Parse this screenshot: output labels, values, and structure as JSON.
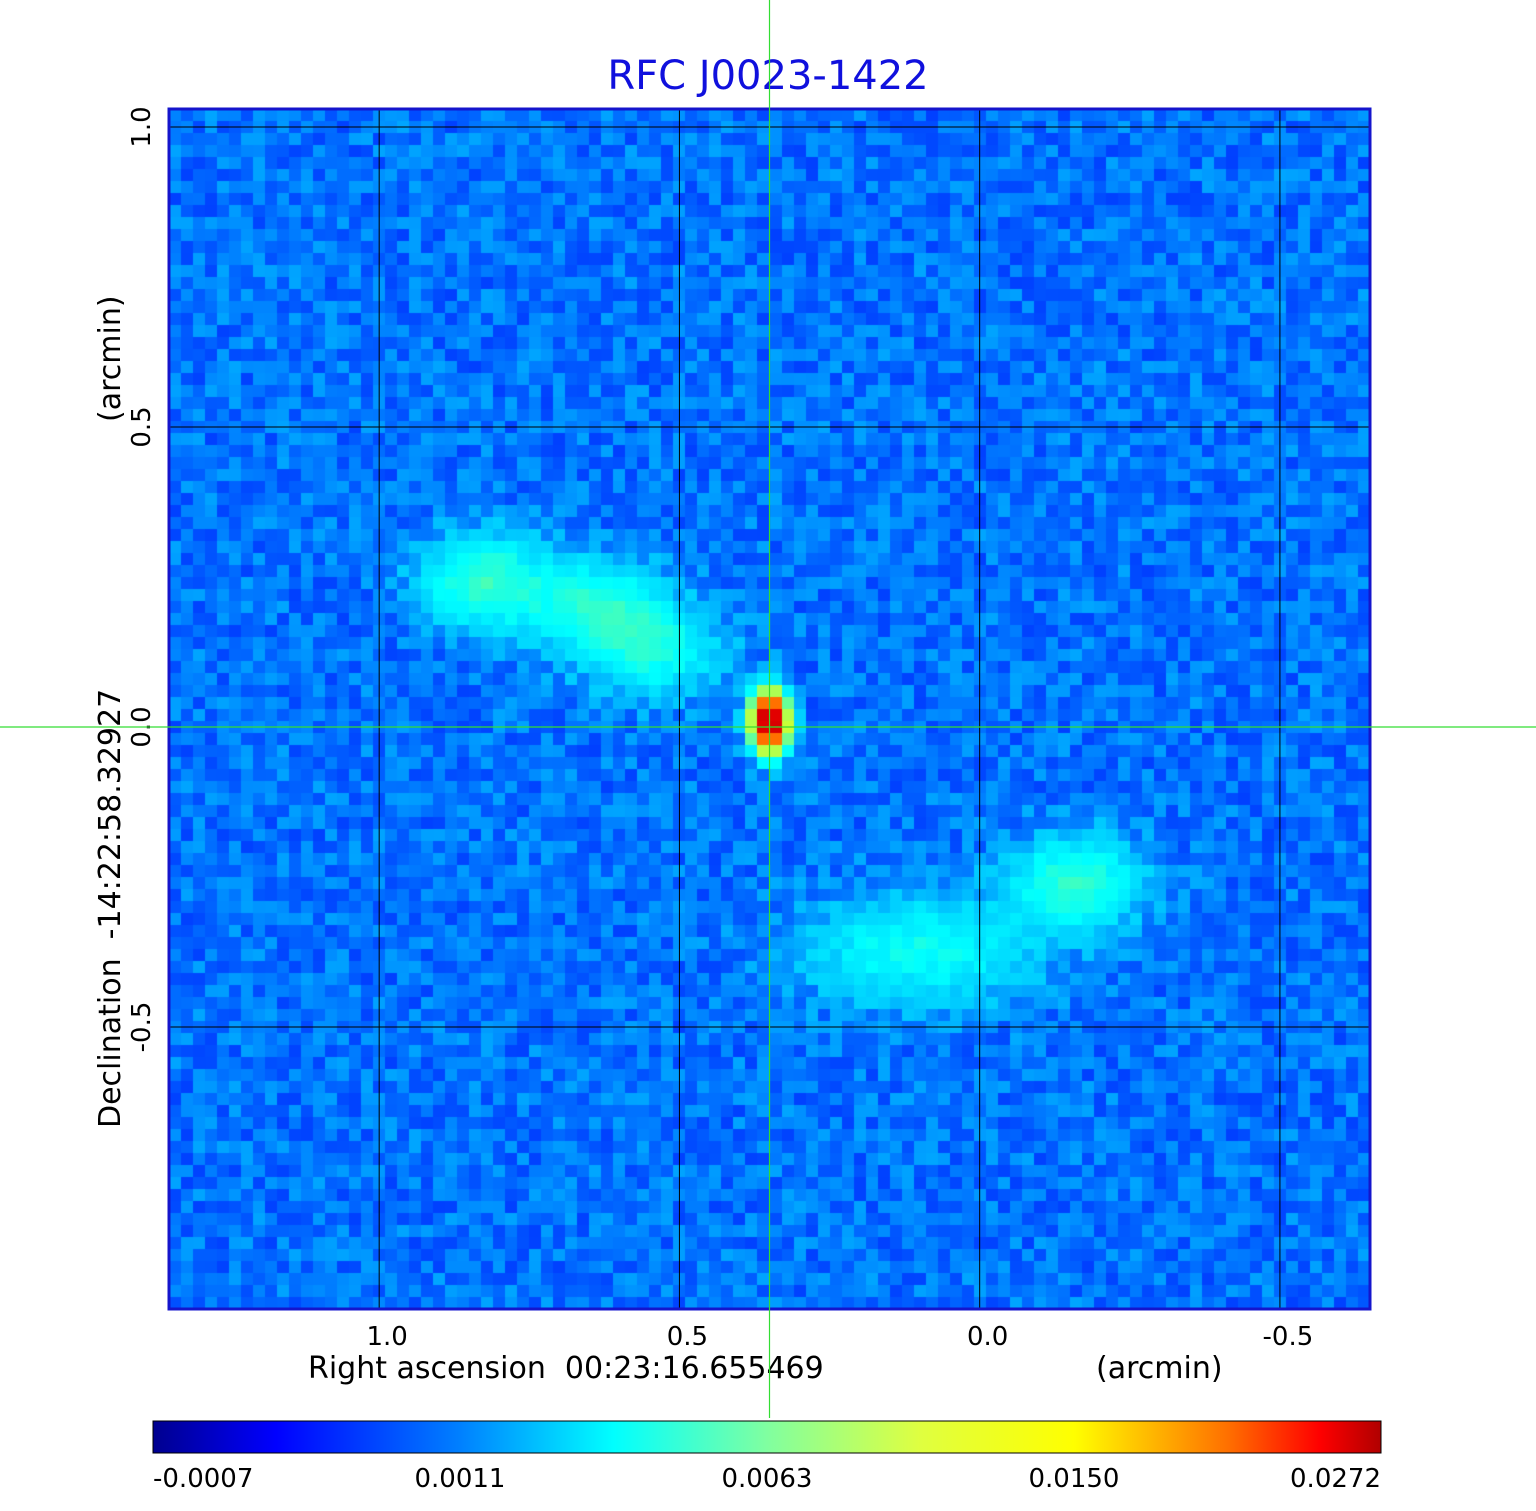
{
  "chart_data": {
    "type": "heatmap",
    "title": "RFC J0023-1422",
    "xlabel": "Right ascension  00:23:16.655469",
    "xunit": "(arcmin)",
    "ylabel": "Declination  -14:22:58.32927",
    "yunit": "(arcmin)",
    "xlim": [
      1.35,
      -0.65
    ],
    "ylim": [
      -0.97,
      1.03
    ],
    "x_ticks": [
      "1.0",
      "0.5",
      "0.0",
      "-0.5"
    ],
    "x_tick_values": [
      1.0,
      0.5,
      0.0,
      -0.5
    ],
    "y_ticks": [
      "1.0",
      "0.5",
      "0.0",
      "-0.5"
    ],
    "y_tick_values": [
      1.0,
      0.5,
      0.0,
      -0.5
    ],
    "grid": true,
    "colormap": "jet",
    "colorbar": {
      "ticks": [
        "-0.0007",
        "0.0011",
        "0.0063",
        "0.0150",
        "0.0272"
      ],
      "min": -0.0007,
      "max": 0.0272
    },
    "crosshair": {
      "x": 0.35,
      "y": 0.0,
      "color": "#33dd33"
    },
    "components": [
      {
        "name": "core",
        "x": 0.35,
        "y": 0.01,
        "peak": 0.0272
      },
      {
        "name": "north-east lobe hotspot",
        "x": 0.82,
        "y": 0.24,
        "peak": 0.0035
      },
      {
        "name": "north-east jet knot",
        "x": 0.64,
        "y": 0.2,
        "peak": 0.003
      },
      {
        "name": "north-east jet knot",
        "x": 0.54,
        "y": 0.13,
        "peak": 0.0028
      },
      {
        "name": "south-west lobe",
        "x": 0.1,
        "y": -0.37,
        "peak": 0.0025
      },
      {
        "name": "south-west hotspot",
        "x": -0.16,
        "y": -0.26,
        "peak": 0.0033
      }
    ],
    "background_level": 0.0004
  }
}
